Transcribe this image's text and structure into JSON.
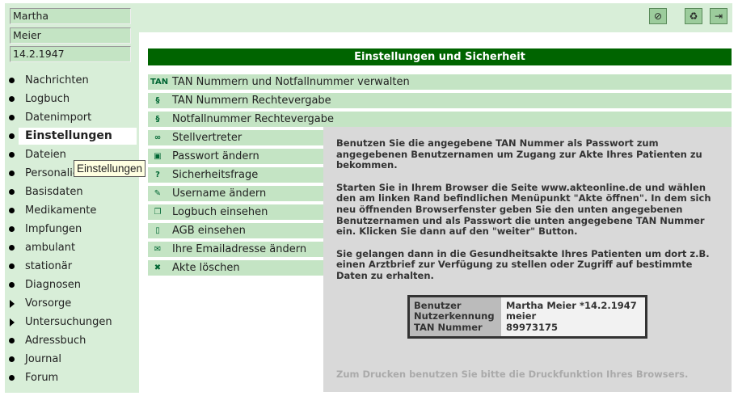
{
  "patient": {
    "first_name": "Martha",
    "last_name": "Meier",
    "birthdate": "14.2.1947"
  },
  "nav": [
    {
      "label": "Nachrichten",
      "marker": "bullet"
    },
    {
      "label": "Logbuch",
      "marker": "bullet"
    },
    {
      "label": "Datenimport",
      "marker": "bullet"
    },
    {
      "label": "Einstellungen",
      "marker": "bullet",
      "active": true
    },
    {
      "label": "Dateien",
      "marker": "bullet"
    },
    {
      "label": "Personalien",
      "marker": "bullet"
    },
    {
      "label": "Basisdaten",
      "marker": "bullet"
    },
    {
      "label": "Medikamente",
      "marker": "bullet"
    },
    {
      "label": "Impfungen",
      "marker": "bullet"
    },
    {
      "label": "ambulant",
      "marker": "bullet"
    },
    {
      "label": "stationär",
      "marker": "bullet"
    },
    {
      "label": "Diagnosen",
      "marker": "bullet"
    },
    {
      "label": "Vorsorge",
      "marker": "triangle"
    },
    {
      "label": "Untersuchungen",
      "marker": "triangle"
    },
    {
      "label": "Adressbuch",
      "marker": "bullet"
    },
    {
      "label": "Journal",
      "marker": "bullet"
    },
    {
      "label": "Forum",
      "marker": "bullet"
    }
  ],
  "tooltip": "Einstellungen",
  "top_icons": [
    "no-entry-icon",
    "recycle-icon",
    "logout-icon"
  ],
  "header": "Einstellungen und Sicherheit",
  "menu": [
    {
      "label": "TAN Nummern und Notfallnummer verwalten",
      "icon": "TAN"
    },
    {
      "label": "TAN Nummern Rechtevergabe",
      "icon": "§"
    },
    {
      "label": "Notfallnummer Rechtevergabe",
      "icon": "§"
    },
    {
      "label": "Stellvertreter",
      "icon": "∞"
    },
    {
      "label": "Passwort ändern",
      "icon": "▣"
    },
    {
      "label": "Sicherheitsfrage",
      "icon": "?"
    },
    {
      "label": "Username ändern",
      "icon": "✎"
    },
    {
      "label": "Logbuch einsehen",
      "icon": "❐"
    },
    {
      "label": "AGB einsehen",
      "icon": "▯"
    },
    {
      "label": "Ihre Emailadresse ändern",
      "icon": "✉"
    },
    {
      "label": "Akte löschen",
      "icon": "✖"
    }
  ],
  "overlay": {
    "p1": "Benutzen Sie die angegebene TAN Nummer als Passwort zum angegebenen Benutzernamen um Zugang zur Akte Ihres Patienten zu bekommen.",
    "p2": "Starten Sie in Ihrem Browser die Seite www.akteonline.de und wählen den am linken Rand befindlichen Menüpunkt \"Akte öffnen\". In dem sich neu öffnenden Browserfenster geben Sie den unten angegebenen Benutzernamen und als Passwort die unten angegebene TAN Nummer ein. Klicken Sie dann auf den \"weiter\" Button.",
    "p3": "Sie gelangen dann in die Gesundheitsakte Ihres Patienten um dort z.B. einen Arztbrief zur Verfügung zu stellen oder Zugriff auf bestimmte Daten zu erhalten.",
    "info": {
      "user_label": "Benutzer",
      "user": "Martha Meier *14.2.1947",
      "id_label": "Nutzerkennung",
      "id": "meier",
      "tan_label": "TAN Nummer",
      "tan": "89973175"
    },
    "print_note": "Zum Drucken benutzen Sie bitte die Druckfunktion Ihres Browsers."
  }
}
